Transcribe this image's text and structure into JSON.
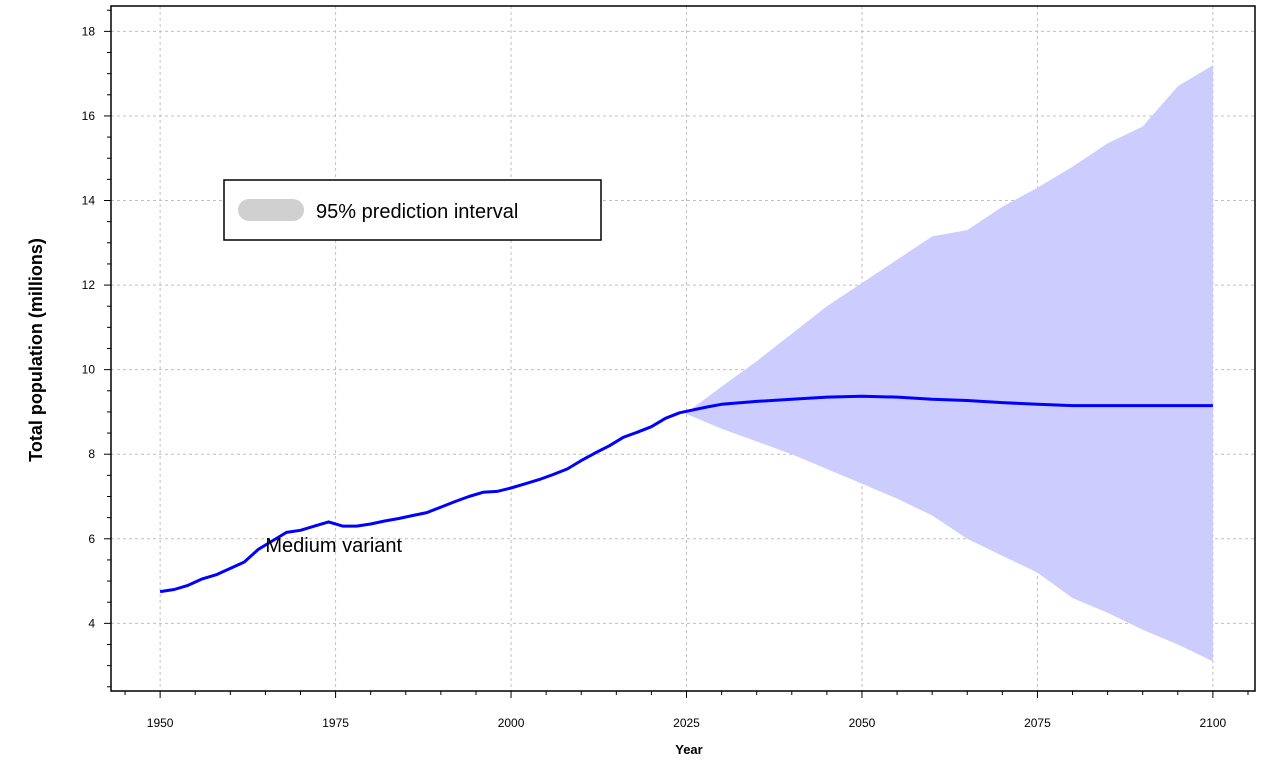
{
  "chart_data": {
    "type": "area",
    "title": "",
    "xlabel": "Year",
    "ylabel": "Total population (millions)",
    "xlim": [
      1943,
      2106
    ],
    "ylim": [
      2.4,
      18.6
    ],
    "x_ticks": [
      1950,
      1975,
      2000,
      2025,
      2050,
      2075,
      2100
    ],
    "y_ticks": [
      4,
      6,
      8,
      10,
      12,
      14,
      16,
      18
    ],
    "grid": true,
    "legend": {
      "position": "upper-left",
      "entries": [
        "95% prediction interval"
      ]
    },
    "annotations": [
      {
        "text": "Medium variant",
        "x": 1965,
        "y": 5.85
      }
    ],
    "colors": {
      "line": "#0000ff",
      "band": "#ccccff",
      "legend_swatch": "#d0d0d0",
      "grid": "#c0c0c0"
    },
    "series": [
      {
        "name": "Medium variant",
        "x": [
          1950,
          1952,
          1954,
          1956,
          1958,
          1960,
          1962,
          1964,
          1966,
          1968,
          1970,
          1972,
          1974,
          1976,
          1978,
          1980,
          1982,
          1984,
          1986,
          1988,
          1990,
          1992,
          1994,
          1996,
          1998,
          2000,
          2002,
          2004,
          2006,
          2008,
          2010,
          2012,
          2014,
          2016,
          2018,
          2020,
          2022,
          2024,
          2026,
          2028,
          2030,
          2035,
          2040,
          2045,
          2050,
          2055,
          2060,
          2065,
          2070,
          2075,
          2080,
          2085,
          2090,
          2095,
          2100
        ],
        "y": [
          4.75,
          4.8,
          4.9,
          5.05,
          5.15,
          5.3,
          5.45,
          5.75,
          5.95,
          6.15,
          6.2,
          6.3,
          6.4,
          6.3,
          6.3,
          6.35,
          6.42,
          6.48,
          6.55,
          6.62,
          6.75,
          6.88,
          7.0,
          7.1,
          7.12,
          7.2,
          7.3,
          7.4,
          7.52,
          7.65,
          7.85,
          8.03,
          8.2,
          8.4,
          8.52,
          8.65,
          8.85,
          8.98,
          9.05,
          9.12,
          9.18,
          9.25,
          9.3,
          9.35,
          9.37,
          9.35,
          9.3,
          9.27,
          9.22,
          9.18,
          9.15,
          9.15,
          9.15,
          9.15,
          9.15
        ]
      }
    ],
    "interval": {
      "name": "95% prediction interval",
      "x": [
        2025,
        2030,
        2035,
        2040,
        2045,
        2050,
        2055,
        2060,
        2065,
        2070,
        2075,
        2080,
        2085,
        2090,
        2095,
        2100
      ],
      "lower": [
        8.95,
        8.6,
        8.3,
        8.0,
        7.65,
        7.3,
        6.95,
        6.55,
        6.0,
        5.6,
        5.2,
        4.6,
        4.25,
        3.85,
        3.5,
        3.1
      ],
      "upper": [
        8.98,
        9.6,
        10.2,
        10.85,
        11.5,
        12.05,
        12.6,
        13.15,
        13.3,
        13.85,
        14.3,
        14.8,
        15.35,
        15.75,
        16.7,
        17.2
      ]
    }
  }
}
